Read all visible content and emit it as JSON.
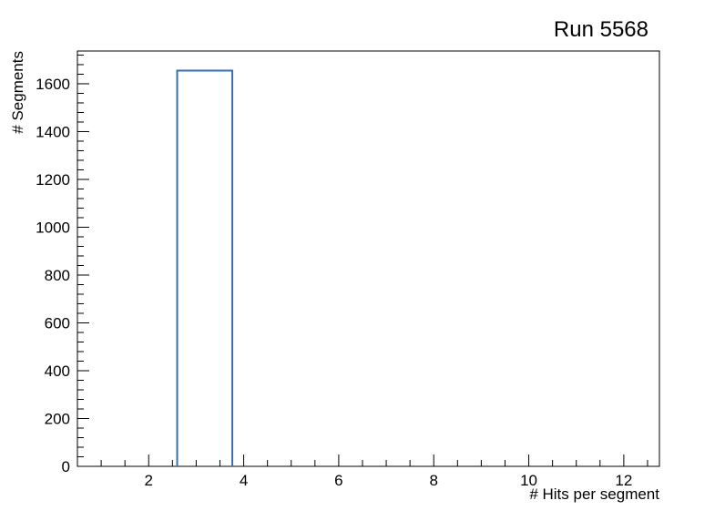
{
  "chart_data": {
    "type": "histogram",
    "title": "Run 5568",
    "xlabel": "# Hits per segment",
    "ylabel": "# Segments",
    "xlim": [
      0.5,
      12.75
    ],
    "ylim": [
      0,
      1737
    ],
    "x_major_ticks": [
      2,
      4,
      6,
      8,
      10,
      12
    ],
    "x_minor_step": 0.5,
    "y_major_ticks": [
      0,
      200,
      400,
      600,
      800,
      1000,
      1200,
      1400,
      1600
    ],
    "y_minor_step": 40,
    "grid": false,
    "legend": "none",
    "frame_color": "#000000",
    "line_color": "#3c6db0",
    "background_color": "#ffffff",
    "bars": [
      {
        "x_start": 2.6,
        "x_end": 3.76,
        "value": 1655
      }
    ]
  }
}
